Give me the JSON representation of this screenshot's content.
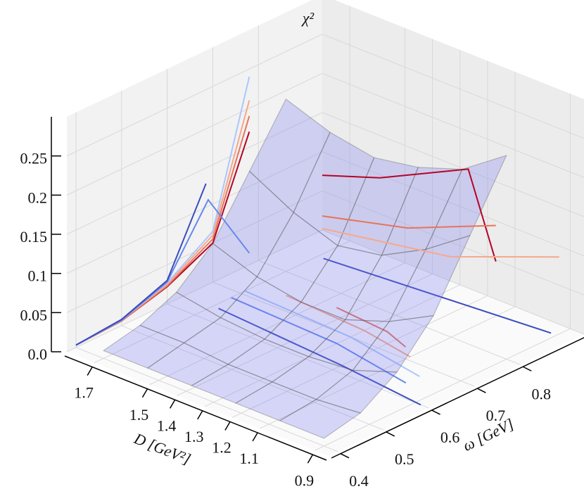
{
  "chart_data": {
    "type": "surface3d",
    "xlabel": "D [GeV²]",
    "ylabel": "ω [GeV]",
    "zlabel": "χ²",
    "xlim": [
      0.85,
      1.8
    ],
    "ylim": [
      0.38,
      0.94
    ],
    "zlim": [
      0,
      0.3
    ],
    "xticks": [
      0.9,
      1.1,
      1.2,
      1.3,
      1.4,
      1.5,
      1.7
    ],
    "yticks": [
      0.4,
      0.5,
      0.6,
      0.7,
      0.8
    ],
    "zticks": [
      {
        "value": 0,
        "label": "0.0"
      },
      0.05,
      0.1,
      0.15,
      0.2,
      0.25
    ],
    "grid": true,
    "surface_color": "#7878f0",
    "surface": {
      "D": [
        0.9,
        1.06,
        1.22,
        1.38,
        1.54,
        1.7
      ],
      "omega": [
        0.4,
        0.48,
        0.56,
        0.64,
        0.72,
        0.8
      ],
      "chi2": [
        [
          0.01,
          0.02,
          0.05,
          0.1,
          0.18,
          0.26
        ],
        [
          0.01,
          0.015,
          0.03,
          0.07,
          0.14,
          0.22
        ],
        [
          0.01,
          0.015,
          0.025,
          0.05,
          0.11,
          0.2
        ],
        [
          0.01,
          0.015,
          0.025,
          0.05,
          0.1,
          0.19
        ],
        [
          0.01,
          0.02,
          0.03,
          0.06,
          0.12,
          0.2
        ],
        [
          0.01,
          0.02,
          0.04,
          0.08,
          0.15,
          0.22
        ]
      ]
    },
    "wall_lines_D": [
      {
        "color": "#b40426",
        "omega": [
          0.4,
          0.5,
          0.6,
          0.7,
          0.78
        ],
        "chi2": [
          0.003,
          0.006,
          0.022,
          0.05,
          0.17
        ]
      },
      {
        "color": "#e7745b",
        "omega": [
          0.4,
          0.5,
          0.6,
          0.7,
          0.78
        ],
        "chi2": [
          0.003,
          0.006,
          0.023,
          0.055,
          0.19
        ]
      },
      {
        "color": "#f5a98b",
        "omega": [
          0.4,
          0.5,
          0.6,
          0.7,
          0.78
        ],
        "chi2": [
          0.003,
          0.007,
          0.025,
          0.06,
          0.21
        ]
      },
      {
        "color": "#aac7fd",
        "omega": [
          0.4,
          0.5,
          0.6,
          0.7,
          0.78
        ],
        "chi2": [
          0.003,
          0.007,
          0.027,
          0.065,
          0.24
        ]
      },
      {
        "color": "#6788ee",
        "omega": [
          0.4,
          0.5,
          0.6,
          0.69,
          0.78
        ],
        "chi2": [
          0.003,
          0.007,
          0.028,
          0.108,
          0.015
        ]
      },
      {
        "color": "#3b4cc0",
        "omega": [
          0.4,
          0.5,
          0.6,
          0.685
        ],
        "chi2": [
          0.003,
          0.008,
          0.03,
          0.13
        ]
      }
    ],
    "wall_lines_omega": [
      {
        "color": "#b40426",
        "D": [
          1.8,
          1.59,
          1.27,
          1.17
        ],
        "chi2": [
          0.07,
          0.096,
          0.152,
          0.048
        ]
      },
      {
        "color": "#e7745b",
        "D": [
          1.8,
          1.49,
          1.17
        ],
        "chi2": [
          0.018,
          0.046,
          0.094
        ]
      },
      {
        "color": "#f5a98b",
        "D": [
          1.8,
          1.335,
          0.94
        ],
        "chi2": [
          0.002,
          0.031,
          0.086
        ]
      }
    ],
    "floor_lines": [
      {
        "color": "#3b4cc0",
        "D": [
          1.68,
          1.2,
          0.88
        ],
        "omega": [
          0.64,
          0.62,
          0.6
        ]
      },
      {
        "color": "#6788ee",
        "D": [
          1.7,
          1.3,
          1.0
        ],
        "omega": [
          0.68,
          0.67,
          0.64
        ]
      },
      {
        "color": "#aac7fd",
        "D": [
          1.7,
          1.3,
          1.0
        ],
        "omega": [
          0.71,
          0.7,
          0.67
        ]
      },
      {
        "color": "#f5a98b",
        "D": [
          1.6,
          1.3,
          1.1
        ],
        "omega": [
          0.74,
          0.73,
          0.71
        ]
      },
      {
        "color": "#e7745b",
        "D": [
          1.45,
          1.25,
          1.15
        ],
        "omega": [
          0.76,
          0.75,
          0.73
        ]
      },
      {
        "color": "#3b4cc0",
        "D": [
          1.68,
          0.92
        ],
        "omega": [
          0.87,
          0.91
        ]
      }
    ]
  }
}
